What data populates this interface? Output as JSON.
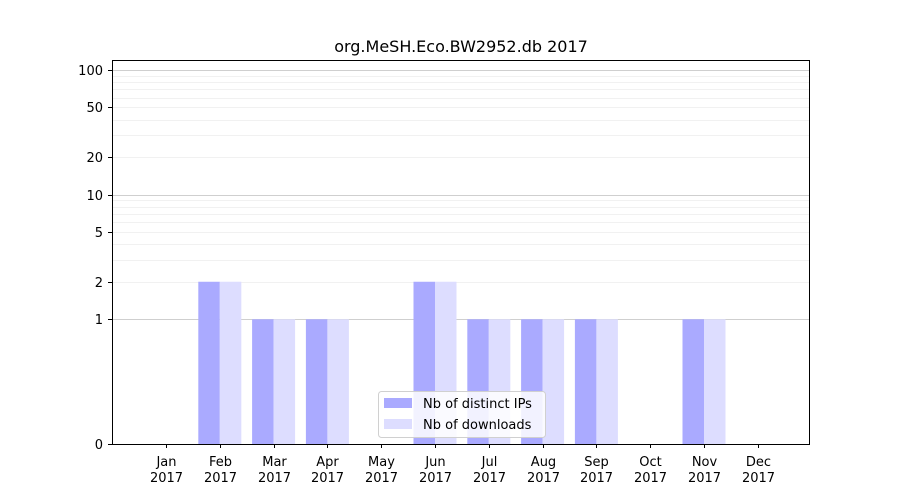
{
  "chart_data": {
    "type": "bar",
    "title": "org.MeSH.Eco.BW2952.db 2017",
    "xlabel": "",
    "ylabel": "",
    "y_scale": "symlog",
    "ylim": [
      0,
      120
    ],
    "y_ticks": [
      0,
      1,
      2,
      5,
      10,
      20,
      50,
      100
    ],
    "categories": [
      {
        "month": "Jan",
        "year": "2017"
      },
      {
        "month": "Feb",
        "year": "2017"
      },
      {
        "month": "Mar",
        "year": "2017"
      },
      {
        "month": "Apr",
        "year": "2017"
      },
      {
        "month": "May",
        "year": "2017"
      },
      {
        "month": "Jun",
        "year": "2017"
      },
      {
        "month": "Jul",
        "year": "2017"
      },
      {
        "month": "Aug",
        "year": "2017"
      },
      {
        "month": "Sep",
        "year": "2017"
      },
      {
        "month": "Oct",
        "year": "2017"
      },
      {
        "month": "Nov",
        "year": "2017"
      },
      {
        "month": "Dec",
        "year": "2017"
      }
    ],
    "series": [
      {
        "name": "Nb of distinct IPs",
        "color": "#aaaaff",
        "values": [
          0,
          2,
          1,
          1,
          0,
          2,
          1,
          1,
          1,
          0,
          1,
          0
        ]
      },
      {
        "name": "Nb of downloads",
        "color": "#ddddff",
        "values": [
          0,
          2,
          1,
          1,
          0,
          2,
          1,
          1,
          1,
          0,
          1,
          0
        ]
      }
    ],
    "grid": true,
    "legend_position": "bottom-center"
  }
}
